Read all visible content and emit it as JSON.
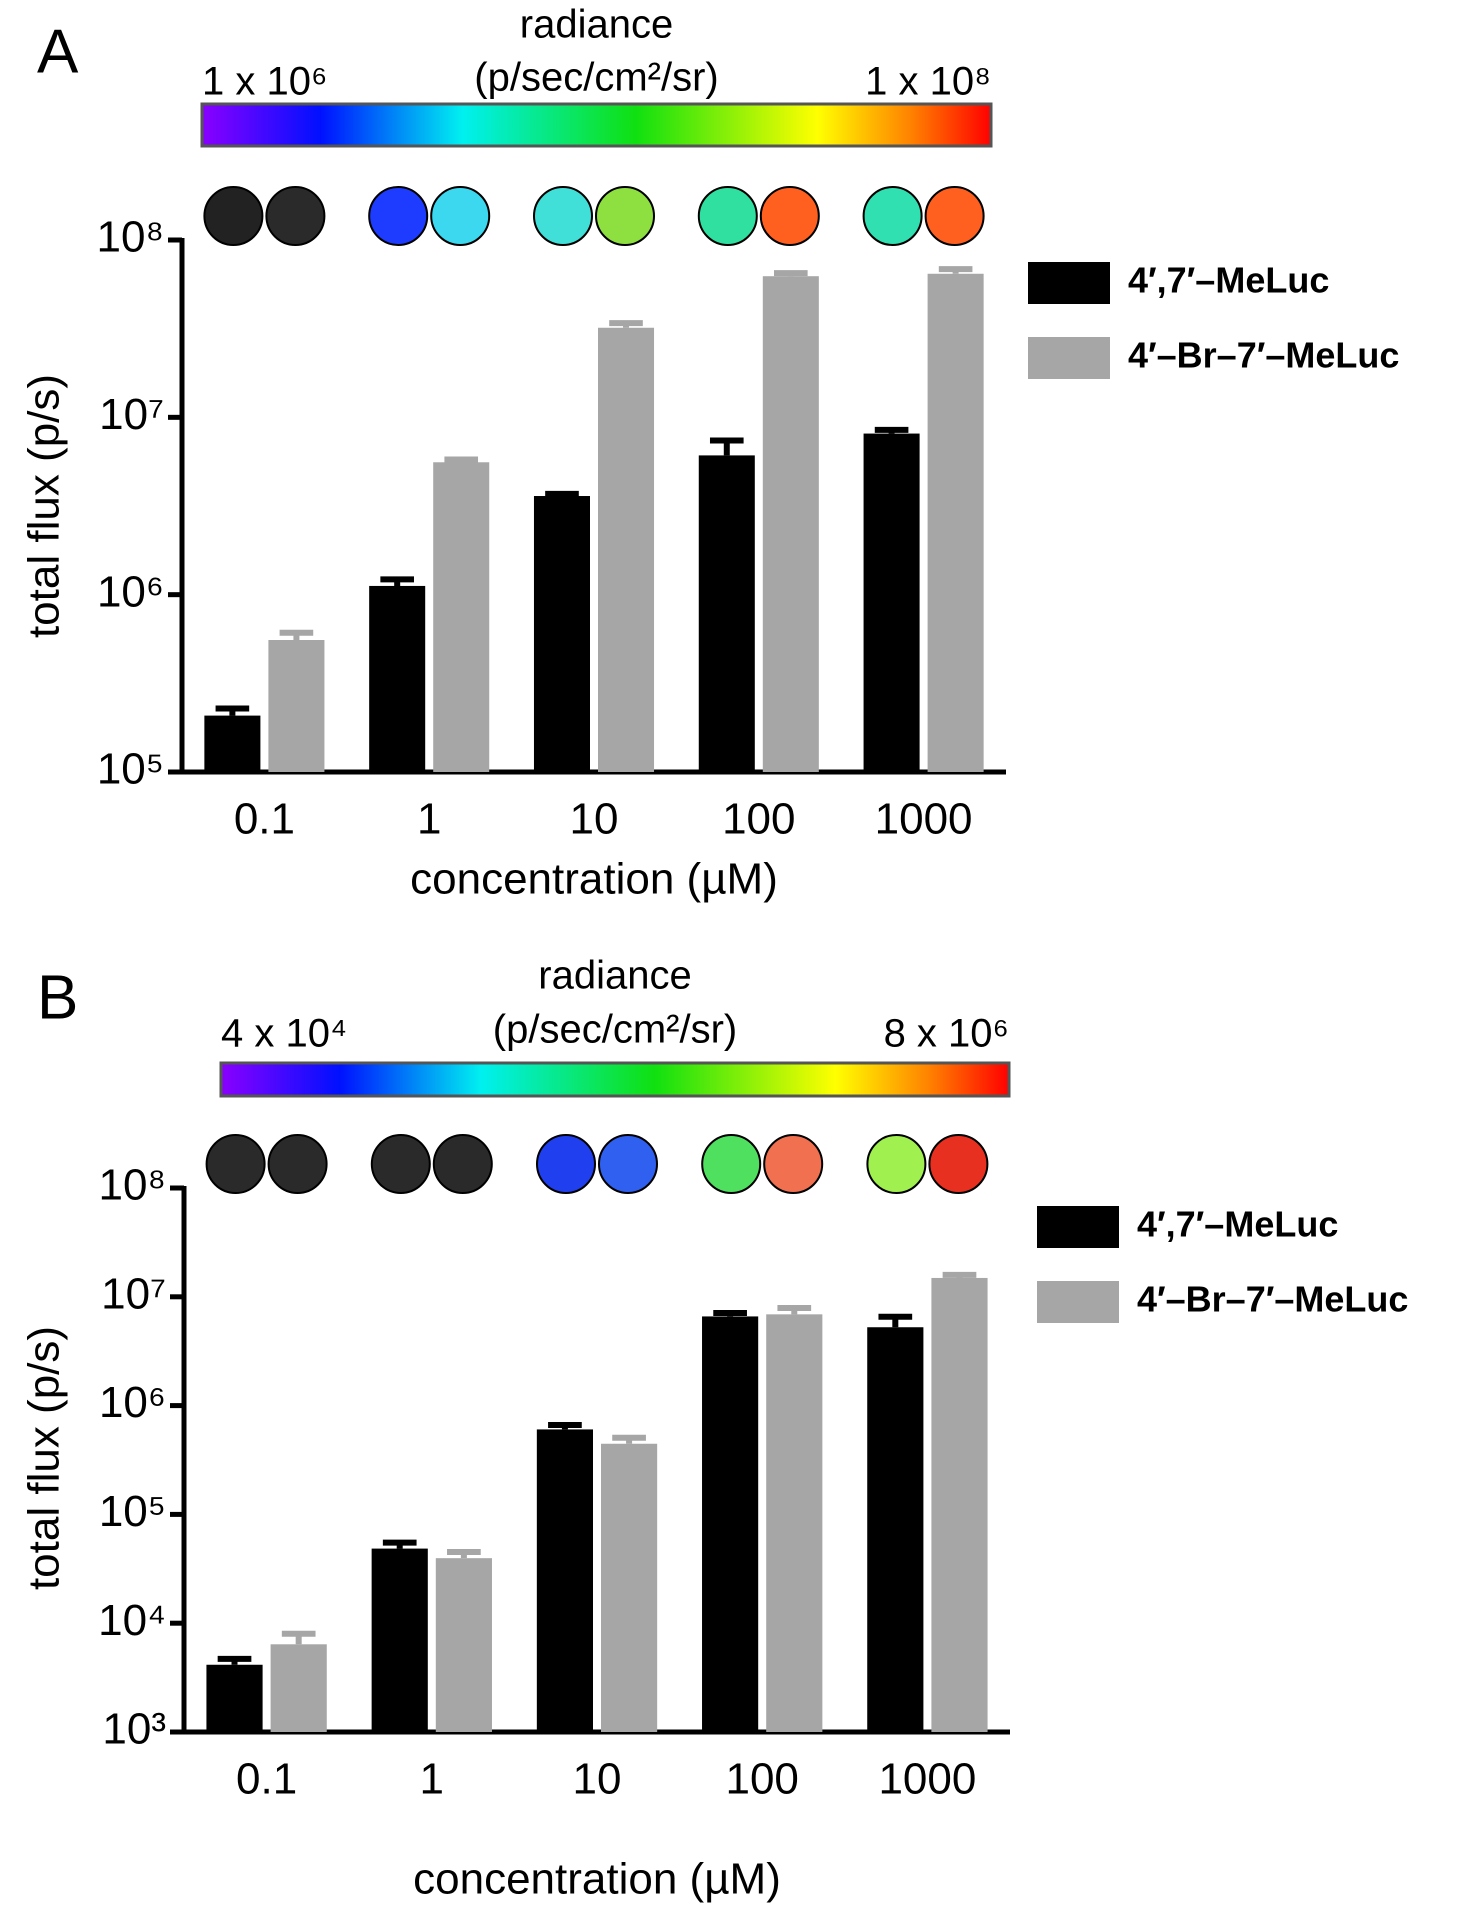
{
  "chart_data": [
    {
      "type": "bar",
      "panel": "A",
      "colorbar_label": "radiance",
      "colorbar_units": "(p/sec/cm²/sr)",
      "colorbar_min_label": "1 x 10⁶",
      "colorbar_max_label": "1 x 10⁸",
      "xlabel": "concentration (µM)",
      "ylabel": "total flux (p/s)",
      "categories": [
        "0.1",
        "1",
        "10",
        "100",
        "1000"
      ],
      "log_scale": true,
      "ylim": [
        100000,
        100000000
      ],
      "yticks": [
        {
          "value": 100000,
          "label": "10⁵"
        },
        {
          "value": 1000000,
          "label": "10⁶"
        },
        {
          "value": 10000000,
          "label": "10⁷"
        },
        {
          "value": 100000000,
          "label": "10⁸"
        }
      ],
      "series": [
        {
          "name": "4′,7′–MeLuc",
          "color": "#000000",
          "values": [
            208000,
            1120000,
            3600000,
            6100000,
            8100000
          ],
          "errors": [
            20000,
            100000,
            100000,
            1300000,
            400000
          ]
        },
        {
          "name": "4′–Br–7′–MeLuc",
          "color": "#a6a6a6",
          "values": [
            555000,
            5580000,
            32000000,
            62500000,
            64500000
          ],
          "errors": [
            55000,
            200000,
            2000000,
            2500000,
            4000000
          ]
        }
      ]
    },
    {
      "type": "bar",
      "panel": "B",
      "colorbar_label": "radiance",
      "colorbar_units": "(p/sec/cm²/sr)",
      "colorbar_min_label": "4 x 10⁴",
      "colorbar_max_label": "8 x 10⁶",
      "xlabel": "concentration (µM)",
      "ylabel": "total flux (p/s)",
      "categories": [
        "0.1",
        "1",
        "10",
        "100",
        "1000"
      ],
      "log_scale": true,
      "ylim": [
        1000,
        100000000
      ],
      "yticks": [
        {
          "value": 1000,
          "label": "10³"
        },
        {
          "value": 10000,
          "label": "10⁴"
        },
        {
          "value": 100000,
          "label": "10⁵"
        },
        {
          "value": 1000000,
          "label": "10⁶"
        },
        {
          "value": 10000000,
          "label": "10⁷"
        },
        {
          "value": 100000000,
          "label": "10⁸"
        }
      ],
      "series": [
        {
          "name": "4′,7′–MeLuc",
          "color": "#000000",
          "values": [
            4150,
            48500,
            604000,
            6600000,
            5250000
          ],
          "errors": [
            550,
            6500,
            60000,
            500000,
            1300000
          ]
        },
        {
          "name": "4′–Br–7′–MeLuc",
          "color": "#a6a6a6",
          "values": [
            6400,
            39600,
            446000,
            6900000,
            14900000
          ],
          "errors": [
            1600,
            5500,
            60000,
            1000000,
            1000000
          ]
        }
      ]
    }
  ]
}
